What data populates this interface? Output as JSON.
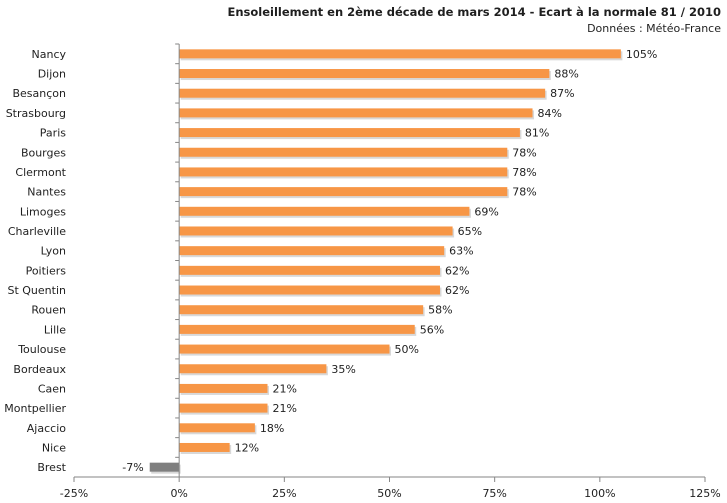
{
  "chart_data": {
    "type": "bar",
    "orientation": "horizontal",
    "title": "Ensoleillement  en 2ème décade de mars 2014 - Ecart à la normale 81 / 2010",
    "subtitle": "Données : Météo-France",
    "categories": [
      "Nancy",
      "Dijon",
      "Besançon",
      "Strasbourg",
      "Paris",
      "Bourges",
      "Clermont",
      "Nantes",
      "Limoges",
      "Charleville",
      "Lyon",
      "Poitiers",
      "St Quentin",
      "Rouen",
      "Lille",
      "Toulouse",
      "Bordeaux",
      "Caen",
      "Montpellier",
      "Ajaccio",
      "Nice",
      "Brest"
    ],
    "values": [
      105,
      88,
      87,
      84,
      81,
      78,
      78,
      78,
      69,
      65,
      63,
      62,
      62,
      58,
      56,
      50,
      35,
      21,
      21,
      18,
      12,
      -7
    ],
    "data_labels": [
      "105%",
      "88%",
      "87%",
      "84%",
      "81%",
      "78%",
      "78%",
      "78%",
      "69%",
      "65%",
      "63%",
      "62%",
      "62%",
      "58%",
      "56%",
      "50%",
      "35%",
      "21%",
      "21%",
      "18%",
      "12%",
      "-7%"
    ],
    "xlim": [
      -25,
      125
    ],
    "xticks": [
      -25,
      0,
      25,
      50,
      75,
      100,
      125
    ],
    "xtick_labels": [
      "-25%",
      "0%",
      "25%",
      "50%",
      "75%",
      "100%",
      "125%"
    ],
    "xlabel": "",
    "ylabel": "",
    "grid": false,
    "legend": "none",
    "colors": {
      "positive": "#F79646",
      "negative": "#7F7F7F",
      "axis": "#868686"
    }
  }
}
